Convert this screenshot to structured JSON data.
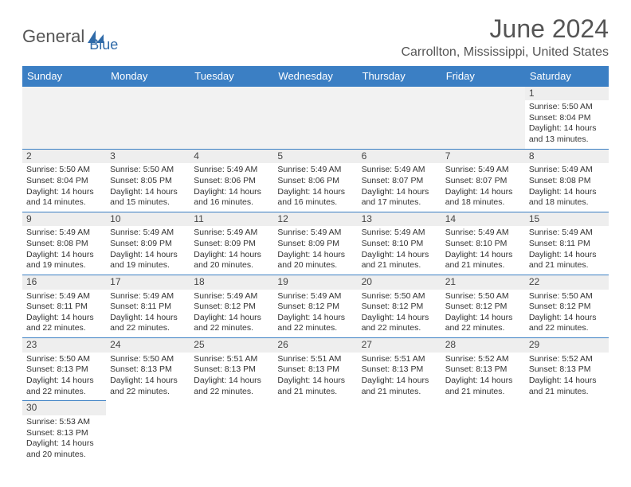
{
  "logo": {
    "part1": "General",
    "part2": "Blue"
  },
  "title": "June 2024",
  "location": "Carrollton, Mississippi, United States",
  "colors": {
    "header_bg": "#3b7fc4",
    "header_text": "#ffffff",
    "daynum_bg": "#eeeeee",
    "border": "#3b7fc4",
    "text": "#333333",
    "logo_gray": "#555555",
    "logo_blue": "#2f6aa8"
  },
  "weekdays": [
    "Sunday",
    "Monday",
    "Tuesday",
    "Wednesday",
    "Thursday",
    "Friday",
    "Saturday"
  ],
  "weeks": [
    [
      null,
      null,
      null,
      null,
      null,
      null,
      {
        "d": "1",
        "sr": "5:50 AM",
        "ss": "8:04 PM",
        "dl": "14 hours and 13 minutes."
      }
    ],
    [
      {
        "d": "2",
        "sr": "5:50 AM",
        "ss": "8:04 PM",
        "dl": "14 hours and 14 minutes."
      },
      {
        "d": "3",
        "sr": "5:50 AM",
        "ss": "8:05 PM",
        "dl": "14 hours and 15 minutes."
      },
      {
        "d": "4",
        "sr": "5:49 AM",
        "ss": "8:06 PM",
        "dl": "14 hours and 16 minutes."
      },
      {
        "d": "5",
        "sr": "5:49 AM",
        "ss": "8:06 PM",
        "dl": "14 hours and 16 minutes."
      },
      {
        "d": "6",
        "sr": "5:49 AM",
        "ss": "8:07 PM",
        "dl": "14 hours and 17 minutes."
      },
      {
        "d": "7",
        "sr": "5:49 AM",
        "ss": "8:07 PM",
        "dl": "14 hours and 18 minutes."
      },
      {
        "d": "8",
        "sr": "5:49 AM",
        "ss": "8:08 PM",
        "dl": "14 hours and 18 minutes."
      }
    ],
    [
      {
        "d": "9",
        "sr": "5:49 AM",
        "ss": "8:08 PM",
        "dl": "14 hours and 19 minutes."
      },
      {
        "d": "10",
        "sr": "5:49 AM",
        "ss": "8:09 PM",
        "dl": "14 hours and 19 minutes."
      },
      {
        "d": "11",
        "sr": "5:49 AM",
        "ss": "8:09 PM",
        "dl": "14 hours and 20 minutes."
      },
      {
        "d": "12",
        "sr": "5:49 AM",
        "ss": "8:09 PM",
        "dl": "14 hours and 20 minutes."
      },
      {
        "d": "13",
        "sr": "5:49 AM",
        "ss": "8:10 PM",
        "dl": "14 hours and 21 minutes."
      },
      {
        "d": "14",
        "sr": "5:49 AM",
        "ss": "8:10 PM",
        "dl": "14 hours and 21 minutes."
      },
      {
        "d": "15",
        "sr": "5:49 AM",
        "ss": "8:11 PM",
        "dl": "14 hours and 21 minutes."
      }
    ],
    [
      {
        "d": "16",
        "sr": "5:49 AM",
        "ss": "8:11 PM",
        "dl": "14 hours and 22 minutes."
      },
      {
        "d": "17",
        "sr": "5:49 AM",
        "ss": "8:11 PM",
        "dl": "14 hours and 22 minutes."
      },
      {
        "d": "18",
        "sr": "5:49 AM",
        "ss": "8:12 PM",
        "dl": "14 hours and 22 minutes."
      },
      {
        "d": "19",
        "sr": "5:49 AM",
        "ss": "8:12 PM",
        "dl": "14 hours and 22 minutes."
      },
      {
        "d": "20",
        "sr": "5:50 AM",
        "ss": "8:12 PM",
        "dl": "14 hours and 22 minutes."
      },
      {
        "d": "21",
        "sr": "5:50 AM",
        "ss": "8:12 PM",
        "dl": "14 hours and 22 minutes."
      },
      {
        "d": "22",
        "sr": "5:50 AM",
        "ss": "8:12 PM",
        "dl": "14 hours and 22 minutes."
      }
    ],
    [
      {
        "d": "23",
        "sr": "5:50 AM",
        "ss": "8:13 PM",
        "dl": "14 hours and 22 minutes."
      },
      {
        "d": "24",
        "sr": "5:50 AM",
        "ss": "8:13 PM",
        "dl": "14 hours and 22 minutes."
      },
      {
        "d": "25",
        "sr": "5:51 AM",
        "ss": "8:13 PM",
        "dl": "14 hours and 22 minutes."
      },
      {
        "d": "26",
        "sr": "5:51 AM",
        "ss": "8:13 PM",
        "dl": "14 hours and 21 minutes."
      },
      {
        "d": "27",
        "sr": "5:51 AM",
        "ss": "8:13 PM",
        "dl": "14 hours and 21 minutes."
      },
      {
        "d": "28",
        "sr": "5:52 AM",
        "ss": "8:13 PM",
        "dl": "14 hours and 21 minutes."
      },
      {
        "d": "29",
        "sr": "5:52 AM",
        "ss": "8:13 PM",
        "dl": "14 hours and 21 minutes."
      }
    ],
    [
      {
        "d": "30",
        "sr": "5:53 AM",
        "ss": "8:13 PM",
        "dl": "14 hours and 20 minutes."
      },
      null,
      null,
      null,
      null,
      null,
      null
    ]
  ],
  "labels": {
    "sunrise": "Sunrise:",
    "sunset": "Sunset:",
    "daylight": "Daylight:"
  }
}
